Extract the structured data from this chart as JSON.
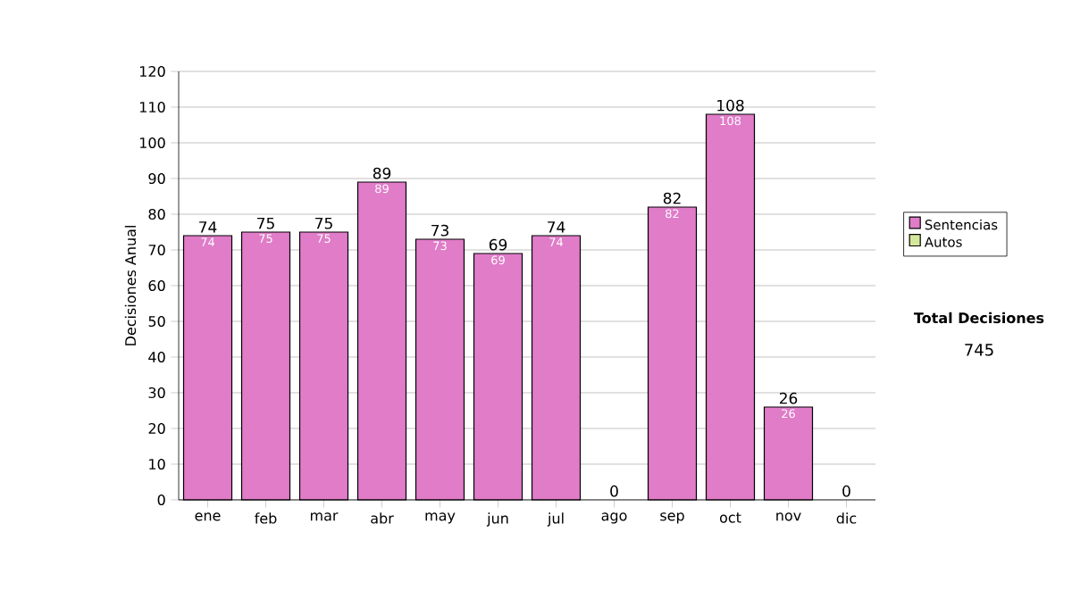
{
  "chart_data": {
    "type": "bar",
    "stacked": true,
    "ylabel": "Decisiones Anual",
    "categories": [
      "ene",
      "feb",
      "mar",
      "abr",
      "may",
      "jun",
      "jul",
      "ago",
      "sep",
      "oct",
      "nov",
      "dic"
    ],
    "series": [
      {
        "name": "Sentencias",
        "color": "#e07cc8",
        "values": [
          74,
          75,
          75,
          89,
          73,
          69,
          74,
          0,
          82,
          108,
          26,
          0
        ],
        "value_labels": [
          "74",
          "75",
          "75",
          "89",
          "73",
          "69",
          "74",
          null,
          "82",
          "108",
          "26",
          null
        ]
      },
      {
        "name": "Autos",
        "color": "#d4e89c",
        "values": [
          0,
          0,
          0,
          0,
          0,
          0,
          0,
          0,
          0,
          0,
          0,
          0
        ]
      }
    ],
    "totals": [
      "74",
      "75",
      "75",
      "89",
      "73",
      "69",
      "74",
      "0",
      "82",
      "108",
      "26",
      "0"
    ],
    "ylim": [
      0,
      120
    ],
    "yticks": [
      0,
      10,
      20,
      30,
      40,
      50,
      60,
      70,
      80,
      90,
      100,
      110,
      120
    ],
    "grid": "y",
    "legend": "right",
    "annotations": [
      "Total Decisiones",
      "745"
    ]
  }
}
